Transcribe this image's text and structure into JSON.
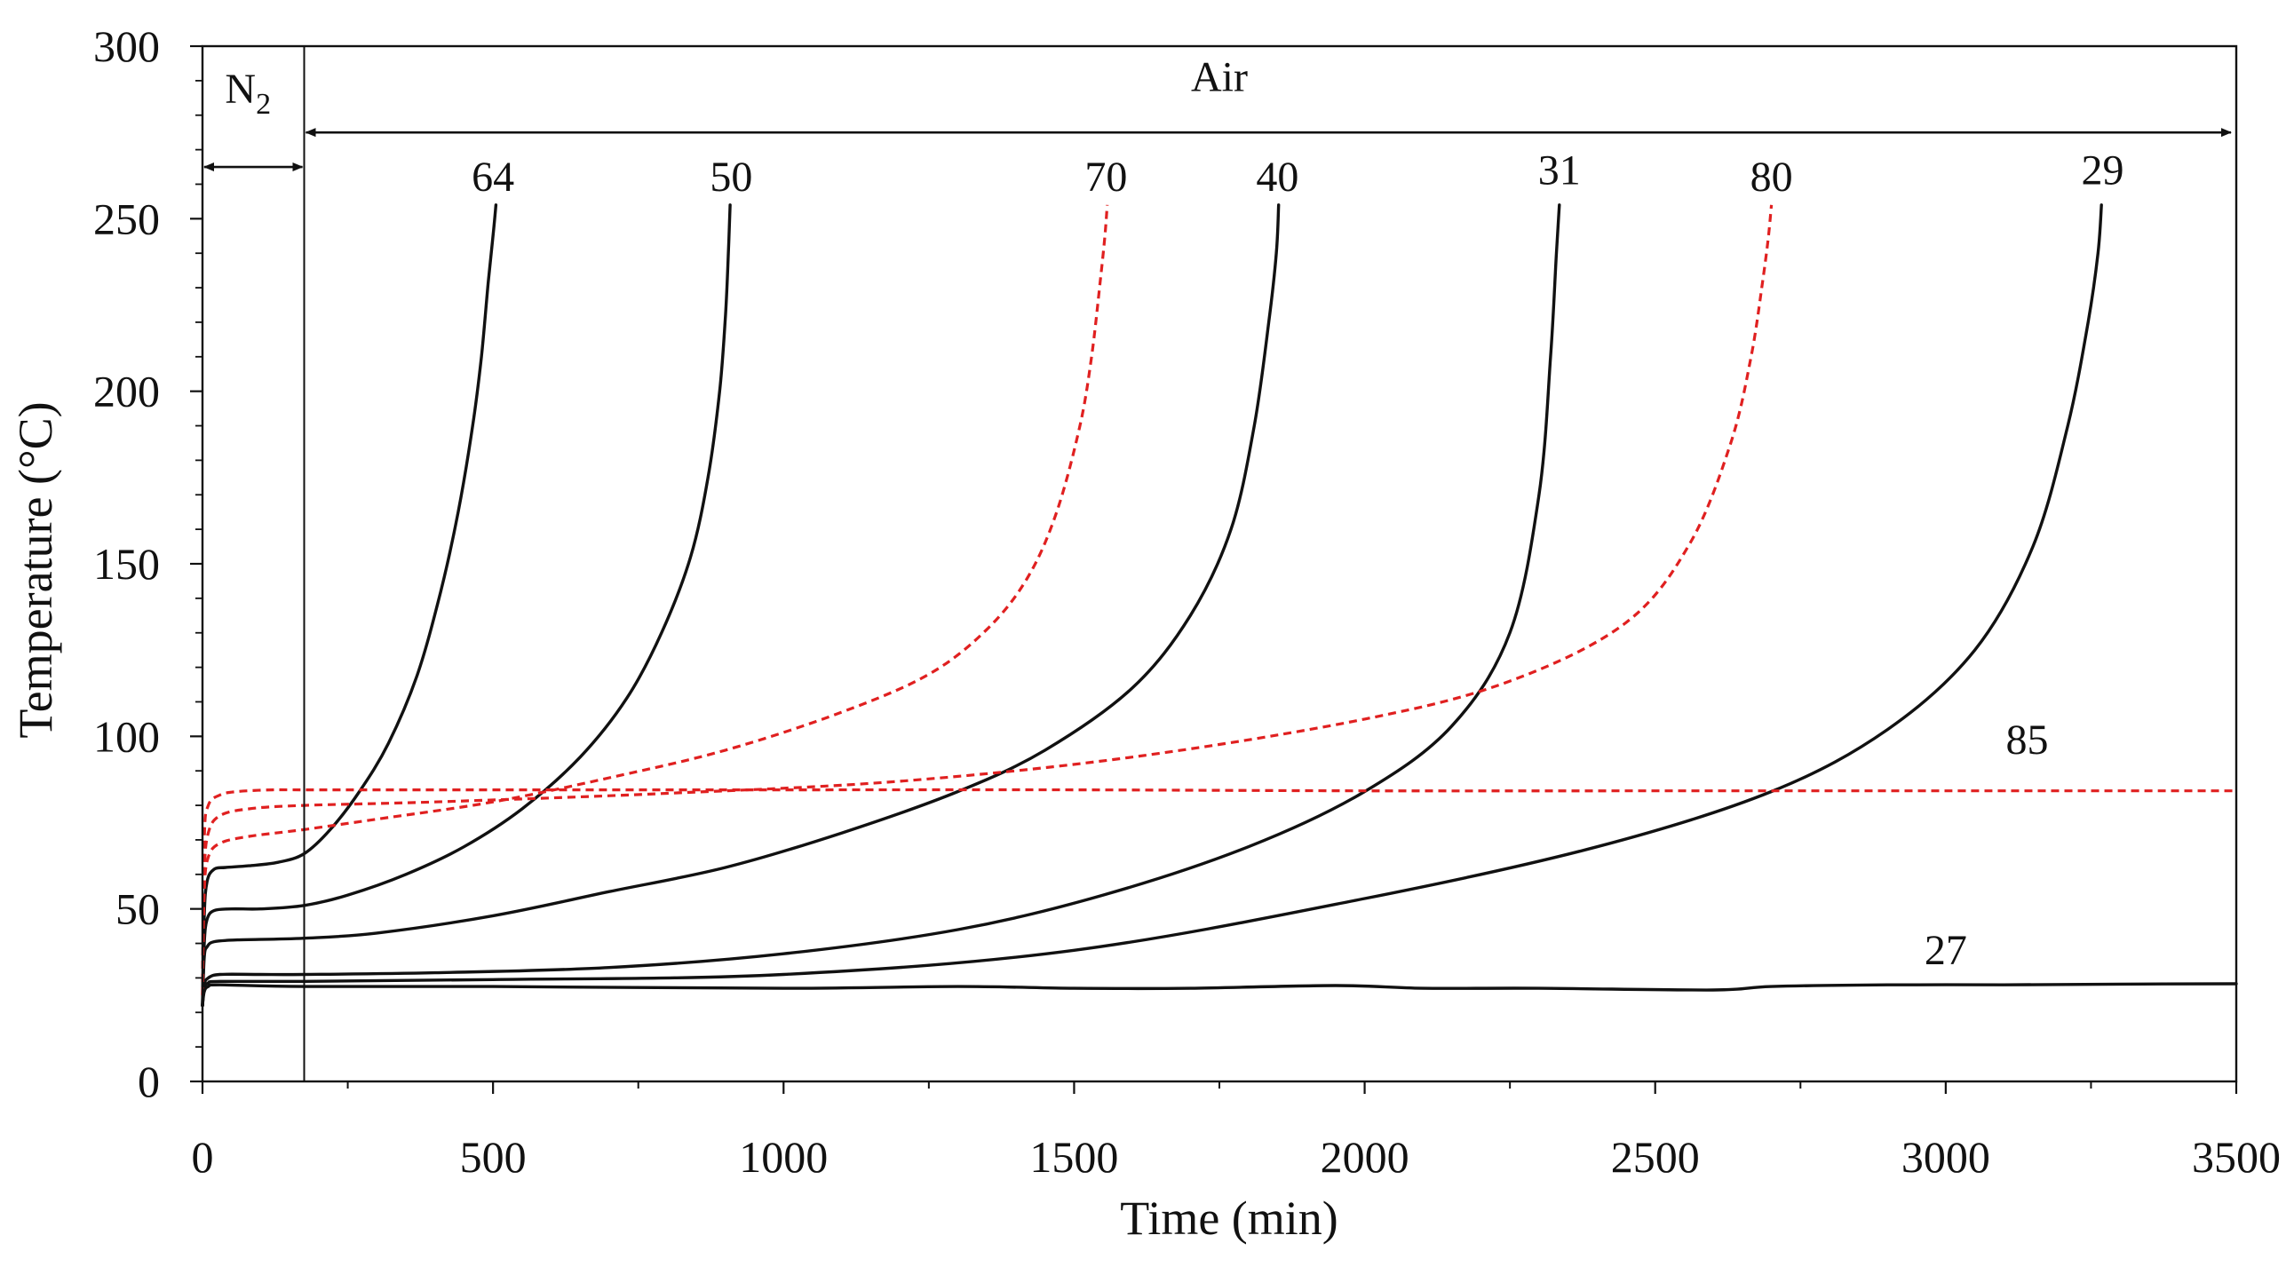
{
  "chart_data": {
    "type": "line",
    "title": "",
    "xlabel": "Time (min)",
    "ylabel": "Temperature  (°C)",
    "xlim": [
      0,
      3500
    ],
    "ylim": [
      0,
      300
    ],
    "xticks": [
      0,
      500,
      1000,
      1500,
      2000,
      2500,
      3000,
      3500
    ],
    "yticks": [
      0,
      50,
      100,
      150,
      200,
      250,
      300
    ],
    "grid": false,
    "legend": "none",
    "annotations": {
      "n2_label": "N",
      "n2_subscript": "2",
      "air_label": "Air",
      "n2_range": [
        0,
        175
      ],
      "air_range": [
        175,
        3500
      ],
      "arrow_level_n2": 265,
      "arrow_level_air": 275,
      "switch_time": 175
    },
    "series": [
      {
        "name": "64",
        "label": "64",
        "style": "solid",
        "color": "#111111",
        "x": [
          0,
          3,
          8,
          20,
          40,
          80,
          130,
          175,
          220,
          270,
          320,
          370,
          410,
          440,
          465,
          480,
          492,
          500,
          505
        ],
        "y": [
          22,
          48,
          58,
          61.5,
          62,
          62.5,
          63.5,
          66,
          73,
          84,
          98,
          118,
          142,
          165,
          190,
          210,
          232,
          245,
          254
        ],
        "label_x": 500,
        "label_y": 258
      },
      {
        "name": "50",
        "label": "50",
        "style": "solid",
        "color": "#111111",
        "x": [
          0,
          3,
          8,
          20,
          50,
          100,
          175,
          250,
          350,
          450,
          550,
          650,
          730,
          790,
          840,
          870,
          890,
          900,
          905,
          908
        ],
        "y": [
          22,
          40,
          47,
          49.5,
          50,
          50,
          51,
          54,
          60,
          68,
          79,
          94,
          111,
          130,
          152,
          175,
          200,
          222,
          240,
          254
        ],
        "label_x": 910,
        "label_y": 258
      },
      {
        "name": "70",
        "label": "70",
        "style": "dashed",
        "color": "#e02020",
        "x": [
          0,
          3,
          10,
          30,
          80,
          175,
          300,
          500,
          700,
          900,
          1100,
          1250,
          1350,
          1420,
          1470,
          1510,
          1530,
          1545,
          1553,
          1557
        ],
        "y": [
          25,
          55,
          65,
          69,
          71,
          73,
          76,
          81,
          88,
          96,
          107,
          118,
          131,
          146,
          165,
          190,
          210,
          232,
          245,
          254
        ],
        "label_x": 1555,
        "label_y": 258
      },
      {
        "name": "40",
        "label": "40",
        "style": "solid",
        "color": "#111111",
        "x": [
          0,
          3,
          8,
          20,
          60,
          175,
          300,
          500,
          700,
          900,
          1100,
          1300,
          1450,
          1600,
          1700,
          1770,
          1810,
          1835,
          1848,
          1852
        ],
        "y": [
          22,
          36,
          39,
          40.5,
          41,
          41.5,
          43,
          48,
          55,
          62,
          72,
          84,
          96,
          114,
          135,
          160,
          190,
          220,
          240,
          254
        ],
        "label_x": 1850,
        "label_y": 258
      },
      {
        "name": "31",
        "label": "31",
        "style": "solid",
        "color": "#111111",
        "x": [
          0,
          3,
          10,
          30,
          100,
          175,
          400,
          700,
          1000,
          1300,
          1550,
          1800,
          2000,
          2150,
          2250,
          2300,
          2320,
          2330,
          2335
        ],
        "y": [
          22,
          28,
          30,
          31,
          31,
          31,
          31.5,
          33,
          37,
          44,
          54,
          68,
          84,
          103,
          130,
          170,
          210,
          240,
          254
        ],
        "label_x": 2335,
        "label_y": 260
      },
      {
        "name": "80",
        "label": "80",
        "style": "dashed",
        "color": "#e02020",
        "x": [
          0,
          3,
          10,
          30,
          80,
          175,
          400,
          800,
          1200,
          1600,
          2000,
          2250,
          2450,
          2560,
          2630,
          2665,
          2685,
          2695,
          2700
        ],
        "y": [
          25,
          60,
          72,
          77,
          79,
          80,
          81,
          83.5,
          87,
          94,
          105,
          116,
          133,
          156,
          185,
          210,
          232,
          245,
          254
        ],
        "label_x": 2700,
        "label_y": 258
      },
      {
        "name": "29",
        "label": "29",
        "style": "solid",
        "color": "#111111",
        "x": [
          0,
          3,
          10,
          30,
          175,
          500,
          1000,
          1500,
          2000,
          2400,
          2700,
          2900,
          3050,
          3150,
          3210,
          3245,
          3262,
          3268
        ],
        "y": [
          22,
          27,
          28.5,
          29,
          29,
          29.5,
          31,
          38,
          53,
          68,
          84,
          102,
          125,
          155,
          190,
          220,
          240,
          254
        ],
        "label_x": 3270,
        "label_y": 260
      },
      {
        "name": "85",
        "label": "85",
        "style": "dashed",
        "color": "#e02020",
        "x": [
          0,
          3,
          10,
          30,
          60,
          120,
          175,
          500,
          1000,
          1500,
          2000,
          2500,
          3000,
          3500
        ],
        "y": [
          25,
          70,
          80,
          83,
          84,
          84.5,
          84.5,
          84.5,
          84.5,
          84.5,
          84.2,
          84.2,
          84.2,
          84.2
        ],
        "label_x": 3140,
        "label_y": 95
      },
      {
        "name": "27",
        "label": "27",
        "style": "solid",
        "color": "#111111",
        "x": [
          0,
          3,
          10,
          30,
          175,
          500,
          1000,
          1300,
          1500,
          1700,
          1950,
          2100,
          2300,
          2600,
          2700,
          2900,
          3100,
          3300,
          3500
        ],
        "y": [
          22,
          26,
          27.5,
          28,
          27.5,
          27.5,
          27,
          27.5,
          27,
          27,
          27.8,
          27,
          27,
          26.5,
          27.5,
          28,
          28,
          28.2,
          28.3
        ],
        "label_x": 3000,
        "label_y": 34
      }
    ]
  }
}
